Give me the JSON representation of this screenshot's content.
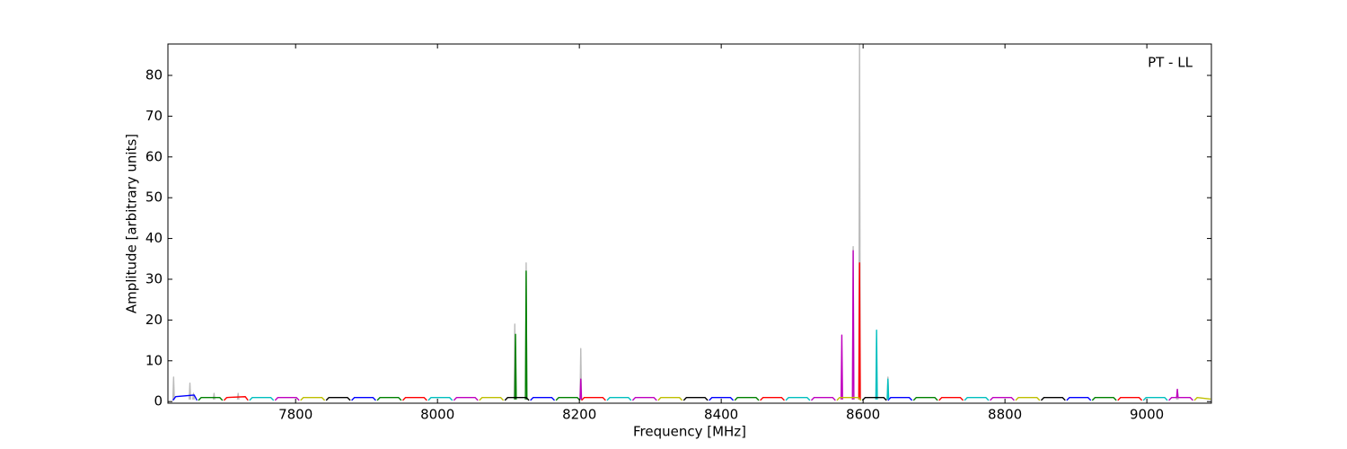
{
  "chart_data": {
    "type": "line",
    "annotation": "PT - LL",
    "xlabel": "Frequency [MHz]",
    "ylabel": "Amplitude [arbitrary units]",
    "xlim": [
      7620,
      9091
    ],
    "ylim": [
      -0.4,
      87.7
    ],
    "xticks": [
      7800,
      8000,
      8200,
      8400,
      8600,
      8800,
      9000
    ],
    "yticks": [
      0,
      10,
      20,
      30,
      40,
      50,
      60,
      70,
      80
    ],
    "series": [
      {
        "color": "#bbbbbb",
        "x": [
          7627,
          7628,
          7629,
          null,
          7650,
          7651,
          7652,
          null,
          7655,
          7656,
          7657,
          null,
          7684,
          7685,
          7686,
          null,
          7718,
          7719,
          7720,
          null,
          8108,
          8109,
          8110,
          null,
          8124,
          8125,
          8126,
          null,
          8201,
          8202,
          8203,
          null,
          8585,
          8586,
          8587,
          null,
          8594,
          8595,
          8596,
          null,
          8634,
          8635,
          8636,
          null,
          9042,
          9043,
          9044
        ],
        "values": [
          0.5,
          6,
          0.5,
          null,
          0.5,
          4.5,
          0.5,
          null,
          0.5,
          2,
          0.5,
          null,
          0.5,
          2,
          0.5,
          null,
          0.5,
          2,
          0.5,
          null,
          0.5,
          19,
          0.5,
          null,
          0.5,
          34,
          0.5,
          null,
          0.5,
          13,
          0.5,
          null,
          0.5,
          38,
          0.5,
          null,
          0.5,
          88,
          0.5,
          null,
          0.5,
          6,
          0.5,
          null,
          0.5,
          3,
          0.5
        ]
      },
      {
        "color": "#0000ff",
        "x": [
          7627,
          7631,
          7657,
          7661,
          null,
          7879,
          7883,
          7909,
          7913,
          null,
          8131,
          8135,
          8161,
          8165,
          null,
          8383,
          8387,
          8413,
          8417,
          null,
          8635,
          8639,
          8665,
          8669,
          null,
          8887,
          8891,
          8917,
          8921
        ],
        "values": [
          0.3,
          1.2,
          1.6,
          0.3,
          null,
          0.3,
          1,
          1,
          0.3,
          null,
          0.3,
          1,
          1,
          0.3,
          null,
          0.3,
          1,
          1,
          0.3,
          null,
          0.3,
          1,
          1,
          0.3,
          null,
          0.3,
          1,
          1,
          0.3
        ]
      },
      {
        "color": "#008000",
        "x": [
          7663,
          7667,
          7693,
          7697,
          null,
          7915,
          7919,
          7945,
          7949,
          null,
          8109,
          8110,
          8111,
          null,
          8124,
          8125,
          8126,
          null,
          8167,
          8171,
          8197,
          8201,
          null,
          8419,
          8423,
          8449,
          8453,
          null,
          8671,
          8675,
          8701,
          8705,
          null,
          8923,
          8927,
          8953,
          8957
        ],
        "values": [
          0.3,
          1,
          1,
          0.3,
          null,
          0.3,
          1,
          1,
          0.3,
          null,
          0.5,
          16.5,
          0.5,
          null,
          0.5,
          32,
          0.5,
          null,
          0.3,
          1,
          1,
          0.3,
          null,
          0.3,
          1,
          1,
          0.3,
          null,
          0.3,
          1,
          1,
          0.3,
          null,
          0.3,
          1,
          1,
          0.3
        ]
      },
      {
        "color": "#ff0000",
        "x": [
          7699,
          7703,
          7729,
          7733,
          null,
          7951,
          7955,
          7981,
          7985,
          null,
          8203,
          8207,
          8233,
          8237,
          null,
          8455,
          8459,
          8485,
          8489,
          null,
          8594,
          8595,
          8596,
          null,
          8707,
          8711,
          8737,
          8741,
          null,
          8959,
          8963,
          8989,
          8993
        ],
        "values": [
          0.3,
          1,
          1.2,
          0.3,
          null,
          0.3,
          1,
          1,
          0.3,
          null,
          0.3,
          1,
          1,
          0.3,
          null,
          0.3,
          1,
          1,
          0.3,
          null,
          0.5,
          34,
          0.5,
          null,
          0.3,
          1,
          1,
          0.3,
          null,
          0.3,
          1,
          1,
          0.3
        ]
      },
      {
        "color": "#00bfbf",
        "x": [
          7735,
          7739,
          7765,
          7769,
          null,
          7987,
          7991,
          8017,
          8021,
          null,
          8239,
          8243,
          8269,
          8273,
          null,
          8491,
          8495,
          8521,
          8525,
          null,
          8618,
          8619,
          8620,
          null,
          8634,
          8635,
          8636,
          null,
          8743,
          8747,
          8773,
          8777,
          null,
          8995,
          8999,
          9025,
          9029
        ],
        "values": [
          0.3,
          1,
          1,
          0.3,
          null,
          0.3,
          1,
          1,
          0.3,
          null,
          0.3,
          1,
          1,
          0.3,
          null,
          0.3,
          1,
          1,
          0.3,
          null,
          0.5,
          17.5,
          0.5,
          null,
          0.5,
          5.5,
          0.5,
          null,
          0.3,
          1,
          1,
          0.3,
          null,
          0.3,
          1,
          1,
          0.3
        ]
      },
      {
        "color": "#bf00bf",
        "x": [
          7771,
          7775,
          7801,
          7805,
          null,
          8023,
          8027,
          8053,
          8057,
          null,
          8201,
          8202,
          8203,
          null,
          8275,
          8279,
          8305,
          8309,
          null,
          8527,
          8531,
          8557,
          8561,
          null,
          8569,
          8570,
          8571,
          null,
          8585,
          8586,
          8587,
          null,
          8779,
          8783,
          8809,
          8813,
          null,
          9031,
          9035,
          9042,
          9043,
          9044,
          9061,
          9065
        ],
        "values": [
          0.3,
          1,
          1,
          0.3,
          null,
          0.3,
          1,
          1,
          0.3,
          null,
          0.5,
          5.5,
          0.5,
          null,
          0.3,
          1,
          1,
          0.3,
          null,
          0.3,
          1,
          1,
          0.3,
          null,
          0.5,
          16.3,
          0.5,
          null,
          0.5,
          37,
          0.5,
          null,
          0.3,
          1,
          1,
          0.3,
          null,
          0.3,
          1,
          1,
          3,
          1,
          1,
          0.3
        ]
      },
      {
        "color": "#bfbf00",
        "x": [
          7807,
          7811,
          7837,
          7841,
          null,
          8059,
          8063,
          8089,
          8093,
          null,
          8311,
          8315,
          8341,
          8345,
          null,
          8563,
          8567,
          8593,
          8597,
          null,
          8815,
          8819,
          8845,
          8849,
          null,
          9067,
          9071,
          9090
        ],
        "values": [
          0.3,
          1,
          1,
          0.3,
          null,
          0.3,
          1,
          1,
          0.3,
          null,
          0.3,
          1,
          1,
          0.3,
          null,
          0.3,
          1,
          1,
          0.3,
          null,
          0.3,
          1,
          1,
          0.3,
          null,
          0.3,
          1,
          0.6
        ]
      },
      {
        "color": "#000000",
        "x": [
          7843,
          7847,
          7873,
          7877,
          null,
          8095,
          8099,
          8125,
          8129,
          null,
          8347,
          8351,
          8377,
          8381,
          null,
          8599,
          8603,
          8629,
          8633,
          null,
          8851,
          8855,
          8881,
          8885
        ],
        "values": [
          0.3,
          1,
          1,
          0.3,
          null,
          0.3,
          1,
          1,
          0.3,
          null,
          0.3,
          1,
          1,
          0.3,
          null,
          0.3,
          1,
          1,
          0.3,
          null,
          0.3,
          1,
          1,
          0.3
        ]
      }
    ]
  }
}
